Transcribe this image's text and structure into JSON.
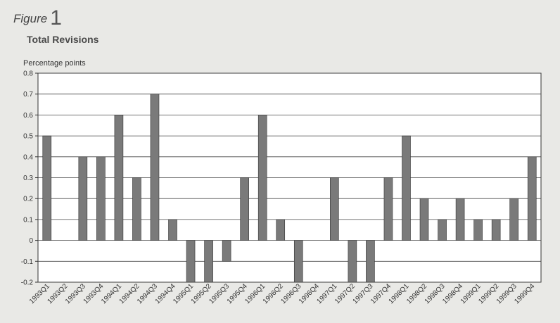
{
  "figure": {
    "label": "Figure",
    "number": "1"
  },
  "chart_data": {
    "type": "bar",
    "title": "Total Revisions",
    "ylabel": "Percentage points",
    "xlabel": "",
    "ylim": [
      -0.2,
      0.8
    ],
    "yticks": [
      "0.8",
      "0.7",
      "0.6",
      "0.5",
      "0.4",
      "0.3",
      "0.2",
      "0.1",
      "0",
      "-0.1",
      "-0.2"
    ],
    "grid": true,
    "categories": [
      "1993Q1",
      "1993Q2",
      "1993Q3",
      "1993Q4",
      "1994Q1",
      "1994Q2",
      "1994Q3",
      "1994Q4",
      "1995Q1",
      "1995Q2",
      "1995Q3",
      "1995Q4",
      "1996Q1",
      "1996Q2",
      "1996Q3",
      "1996Q4",
      "1997Q1",
      "1997Q2",
      "1997Q3",
      "1997Q4",
      "1998Q1",
      "1998Q2",
      "1998Q3",
      "1998Q4",
      "1999Q1",
      "1999Q2",
      "1999Q3",
      "1999Q4"
    ],
    "values": [
      0.5,
      0,
      0.4,
      0.4,
      0.6,
      0.3,
      0.7,
      0.1,
      -0.2,
      -0.2,
      -0.1,
      0.3,
      0.6,
      0.1,
      -0.2,
      0,
      0.3,
      -0.2,
      -0.2,
      0.3,
      0.5,
      0.2,
      0.1,
      0.2,
      0.1,
      0.1,
      0.2,
      0.4
    ],
    "bar_color": "#7a7a7a"
  }
}
